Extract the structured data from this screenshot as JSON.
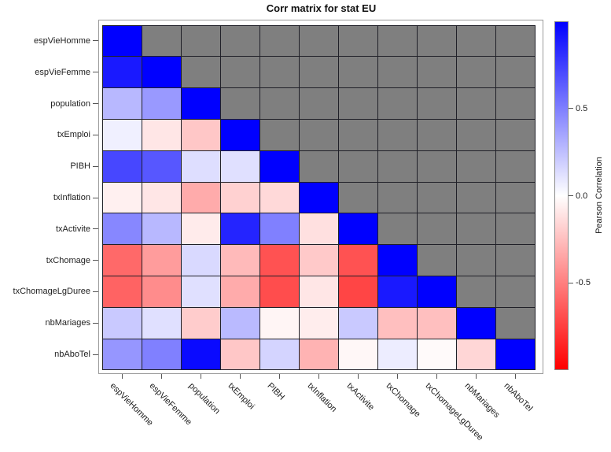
{
  "title": "Corr matrix for stat EU",
  "colorbar": {
    "label": "Pearson Correlation",
    "tick_labels": [
      "0.5",
      "0.0",
      "-0.5"
    ],
    "tick_values": [
      0.5,
      0.0,
      -0.5
    ],
    "range": [
      -1,
      1
    ]
  },
  "colors": {
    "positive_max": "#0000ff",
    "zero": "#ffffff",
    "negative_max": "#ff0000",
    "masked_cell": "#7f7f7f",
    "grid_line": "#202028",
    "frame": "#9a9a9a"
  },
  "chart_data": {
    "type": "heatmap",
    "title": "Corr matrix for stat EU",
    "colorbar_label": "Pearson Correlation",
    "colormap": "blue(+1) - white(0) - red(-1)",
    "mask": "upper triangle masked gray",
    "labels": [
      "espVieHomme",
      "espVieFemme",
      "population",
      "txEmploi",
      "PIBH",
      "txInflation",
      "txActivite",
      "txChomage",
      "txChomageLgDuree",
      "nbMariages",
      "nbAboTel"
    ],
    "matrix": [
      [
        1.0,
        null,
        null,
        null,
        null,
        null,
        null,
        null,
        null,
        null,
        null
      ],
      [
        0.9,
        1.0,
        null,
        null,
        null,
        null,
        null,
        null,
        null,
        null,
        null
      ],
      [
        0.28,
        0.4,
        1.0,
        null,
        null,
        null,
        null,
        null,
        null,
        null,
        null
      ],
      [
        0.06,
        -0.1,
        -0.22,
        1.0,
        null,
        null,
        null,
        null,
        null,
        null,
        null
      ],
      [
        0.72,
        0.66,
        0.13,
        0.12,
        1.0,
        null,
        null,
        null,
        null,
        null,
        null
      ],
      [
        -0.06,
        -0.1,
        -0.33,
        -0.18,
        -0.15,
        1.0,
        null,
        null,
        null,
        null,
        null
      ],
      [
        0.47,
        0.28,
        -0.08,
        0.86,
        0.5,
        -0.12,
        1.0,
        null,
        null,
        null,
        null
      ],
      [
        -0.59,
        -0.39,
        0.15,
        -0.27,
        -0.68,
        -0.21,
        -0.68,
        1.0,
        null,
        null,
        null
      ],
      [
        -0.61,
        -0.45,
        0.12,
        -0.33,
        -0.7,
        -0.1,
        -0.73,
        0.9,
        1.0,
        null,
        null
      ],
      [
        0.21,
        0.12,
        -0.2,
        0.27,
        -0.04,
        -0.07,
        0.21,
        -0.25,
        -0.25,
        1.0,
        null
      ],
      [
        0.41,
        0.5,
        0.96,
        -0.22,
        0.17,
        -0.3,
        -0.03,
        0.07,
        -0.02,
        -0.16,
        1.0
      ]
    ]
  }
}
